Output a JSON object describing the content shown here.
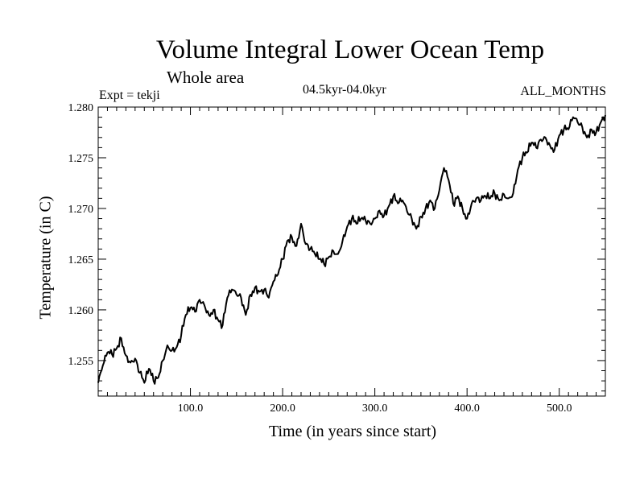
{
  "chart_data": {
    "type": "line",
    "title": "Volume Integral Lower Ocean Temp",
    "subtitle": "Whole area",
    "experiment_label": "Expt = tekji",
    "period_label": "04.5kyr-04.0kyr",
    "months_label": "ALL_MONTHS",
    "xlabel": "Time (in years since start)",
    "ylabel": "Temperature (in C)",
    "xlim": [
      0,
      550
    ],
    "ylim": [
      1.2515,
      1.28
    ],
    "xticks": [
      100,
      200,
      300,
      400,
      500
    ],
    "xtick_labels": [
      "100.0",
      "200.0",
      "300.0",
      "400.0",
      "500.0"
    ],
    "yticks": [
      1.255,
      1.26,
      1.265,
      1.27,
      1.275,
      1.28
    ],
    "ytick_labels": [
      "1.255",
      "1.260",
      "1.265",
      "1.270",
      "1.275",
      "1.280"
    ],
    "grid": false,
    "series": [
      {
        "name": "Volume integral lower ocean temperature",
        "x": [
          0,
          5,
          10,
          15,
          20,
          25,
          30,
          35,
          40,
          45,
          50,
          55,
          60,
          65,
          70,
          75,
          80,
          85,
          90,
          95,
          100,
          105,
          110,
          115,
          120,
          125,
          130,
          135,
          140,
          145,
          150,
          155,
          160,
          165,
          170,
          175,
          180,
          185,
          190,
          195,
          200,
          205,
          210,
          215,
          220,
          225,
          230,
          235,
          240,
          245,
          250,
          255,
          260,
          265,
          270,
          275,
          280,
          285,
          290,
          295,
          300,
          305,
          310,
          315,
          320,
          325,
          330,
          335,
          340,
          345,
          350,
          355,
          360,
          365,
          370,
          375,
          380,
          385,
          390,
          395,
          400,
          405,
          410,
          415,
          420,
          425,
          430,
          435,
          440,
          445,
          450,
          455,
          460,
          465,
          470,
          475,
          480,
          485,
          490,
          495,
          500,
          505,
          510,
          515,
          520,
          525,
          530,
          535,
          540,
          545,
          550
        ],
        "y": [
          1.2528,
          1.2545,
          1.2558,
          1.2556,
          1.2562,
          1.2572,
          1.2555,
          1.2548,
          1.2552,
          1.2538,
          1.2528,
          1.2542,
          1.253,
          1.2533,
          1.255,
          1.2565,
          1.256,
          1.2563,
          1.2575,
          1.2595,
          1.2602,
          1.2598,
          1.261,
          1.2605,
          1.2595,
          1.26,
          1.259,
          1.2585,
          1.2612,
          1.262,
          1.2615,
          1.2612,
          1.2595,
          1.2615,
          1.2622,
          1.2618,
          1.262,
          1.2612,
          1.2628,
          1.2635,
          1.265,
          1.2668,
          1.2672,
          1.2663,
          1.2685,
          1.2665,
          1.266,
          1.2655,
          1.265,
          1.2645,
          1.2652,
          1.2658,
          1.2655,
          1.2668,
          1.2682,
          1.269,
          1.2685,
          1.269,
          1.2688,
          1.2685,
          1.269,
          1.2698,
          1.2693,
          1.2702,
          1.2712,
          1.2705,
          1.2708,
          1.2697,
          1.269,
          1.268,
          1.2692,
          1.27,
          1.2708,
          1.27,
          1.2718,
          1.274,
          1.2728,
          1.2705,
          1.2712,
          1.27,
          1.269,
          1.2705,
          1.271,
          1.2708,
          1.2712,
          1.271,
          1.2715,
          1.2708,
          1.2714,
          1.271,
          1.2715,
          1.2738,
          1.275,
          1.2755,
          1.2765,
          1.276,
          1.2768,
          1.277,
          1.2762,
          1.2758,
          1.2772,
          1.2778,
          1.2778,
          1.279,
          1.2785,
          1.278,
          1.277,
          1.2778,
          1.2775,
          1.2785,
          1.2792
        ]
      }
    ]
  }
}
